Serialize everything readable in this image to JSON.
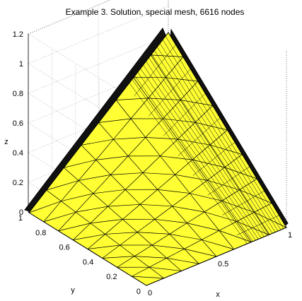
{
  "chart_data": {
    "type": "surface",
    "title": "Example 3. Solution, special mesh, 6616 nodes",
    "xlabel": "x",
    "ylabel": "y",
    "zlabel": "z",
    "xlim": [
      0,
      1
    ],
    "ylim": [
      0,
      1
    ],
    "zlim": [
      0,
      1.2
    ],
    "x_ticks": [
      "0",
      "0.5",
      "1"
    ],
    "y_ticks": [
      "0",
      "0.2",
      "0.4",
      "0.6",
      "0.8",
      "1"
    ],
    "z_ticks": [
      "0",
      "0.2",
      "0.4",
      "0.6",
      "0.8",
      "1",
      "1.2"
    ],
    "grid": true,
    "surface_color": "#ffff33",
    "edge_color": "#000000",
    "nodes": 6616
  }
}
